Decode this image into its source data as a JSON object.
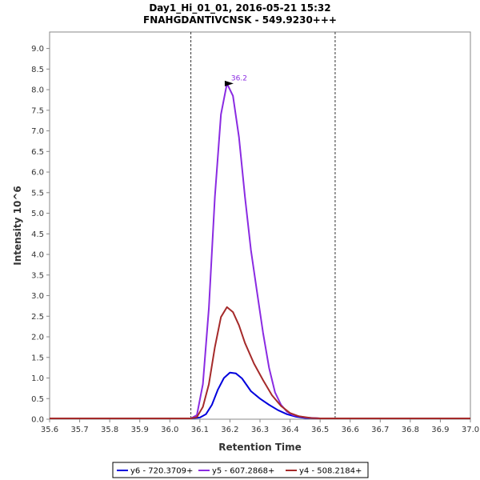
{
  "chart_data": {
    "type": "line",
    "title_line1": "Day1_Hi_01_01, 2016-05-21 15:32",
    "title_line2": "FNAHGDANTIVCNSK - 549.9230+++",
    "xlabel": "Retention Time",
    "ylabel": "Intensity 10^6",
    "xlim": [
      35.6,
      37.0
    ],
    "ylim": [
      0,
      9.4
    ],
    "x_ticks": [
      35.6,
      35.7,
      35.8,
      35.9,
      36.0,
      36.1,
      36.2,
      36.3,
      36.4,
      36.5,
      36.6,
      36.7,
      36.8,
      36.9,
      37.0
    ],
    "x_tick_labels": [
      "35.6",
      "35.7",
      "35.8",
      "35.9",
      "36.0",
      "36.1",
      "36.2",
      "36.3",
      "36.4",
      "36.5",
      "36.6",
      "36.7",
      "36.8",
      "36.9",
      "37.0"
    ],
    "y_ticks": [
      0.0,
      0.5,
      1.0,
      1.5,
      2.0,
      2.5,
      3.0,
      3.5,
      4.0,
      4.5,
      5.0,
      5.5,
      6.0,
      6.5,
      7.0,
      7.5,
      8.0,
      8.5,
      9.0
    ],
    "y_tick_labels": [
      "0.0",
      "0.5",
      "1.0",
      "1.5",
      "2.0",
      "2.5",
      "3.0",
      "3.5",
      "4.0",
      "4.5",
      "5.0",
      "5.5",
      "6.0",
      "6.5",
      "7.0",
      "7.5",
      "8.0",
      "8.5",
      "9.0"
    ],
    "grid": false,
    "legend_position": "bottom",
    "boundaries": [
      36.07,
      36.55
    ],
    "peak_annotation": {
      "label": "36.2",
      "x": 36.22,
      "y": 8.15,
      "color": "#8a2be2"
    },
    "series": [
      {
        "name": "y6 - 720.3709+",
        "color": "#0000dd",
        "points": [
          [
            35.6,
            0.02
          ],
          [
            36.05,
            0.02
          ],
          [
            36.07,
            0.02
          ],
          [
            36.1,
            0.04
          ],
          [
            36.12,
            0.12
          ],
          [
            36.14,
            0.35
          ],
          [
            36.16,
            0.72
          ],
          [
            36.18,
            1.0
          ],
          [
            36.2,
            1.13
          ],
          [
            36.22,
            1.11
          ],
          [
            36.24,
            0.99
          ],
          [
            36.27,
            0.68
          ],
          [
            36.3,
            0.5
          ],
          [
            36.33,
            0.35
          ],
          [
            36.36,
            0.22
          ],
          [
            36.39,
            0.12
          ],
          [
            36.42,
            0.06
          ],
          [
            36.45,
            0.03
          ],
          [
            36.5,
            0.02
          ],
          [
            37.0,
            0.02
          ]
        ]
      },
      {
        "name": "y5 - 607.2868+",
        "color": "#8a2be2",
        "points": [
          [
            35.6,
            0.02
          ],
          [
            36.05,
            0.02
          ],
          [
            36.07,
            0.02
          ],
          [
            36.09,
            0.1
          ],
          [
            36.11,
            0.85
          ],
          [
            36.13,
            2.7
          ],
          [
            36.15,
            5.4
          ],
          [
            36.17,
            7.4
          ],
          [
            36.19,
            8.15
          ],
          [
            36.21,
            7.85
          ],
          [
            36.23,
            6.85
          ],
          [
            36.25,
            5.4
          ],
          [
            36.27,
            4.1
          ],
          [
            36.29,
            3.1
          ],
          [
            36.31,
            2.1
          ],
          [
            36.33,
            1.25
          ],
          [
            36.35,
            0.65
          ],
          [
            36.37,
            0.35
          ],
          [
            36.39,
            0.18
          ],
          [
            36.41,
            0.1
          ],
          [
            36.45,
            0.04
          ],
          [
            36.5,
            0.02
          ],
          [
            37.0,
            0.02
          ]
        ]
      },
      {
        "name": "y4 - 508.2184+",
        "color": "#a52a2a",
        "points": [
          [
            35.6,
            0.02
          ],
          [
            36.05,
            0.02
          ],
          [
            36.07,
            0.02
          ],
          [
            36.09,
            0.05
          ],
          [
            36.11,
            0.3
          ],
          [
            36.13,
            0.85
          ],
          [
            36.15,
            1.75
          ],
          [
            36.17,
            2.48
          ],
          [
            36.19,
            2.72
          ],
          [
            36.21,
            2.6
          ],
          [
            36.23,
            2.28
          ],
          [
            36.25,
            1.85
          ],
          [
            36.28,
            1.35
          ],
          [
            36.31,
            0.95
          ],
          [
            36.34,
            0.58
          ],
          [
            36.37,
            0.32
          ],
          [
            36.4,
            0.15
          ],
          [
            36.43,
            0.07
          ],
          [
            36.47,
            0.03
          ],
          [
            36.5,
            0.02
          ],
          [
            37.0,
            0.02
          ]
        ]
      }
    ]
  }
}
